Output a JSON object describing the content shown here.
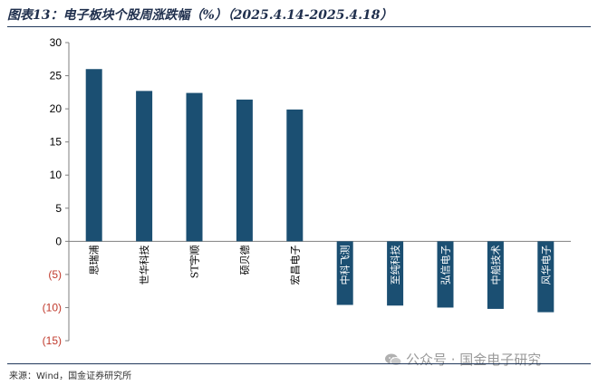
{
  "header": {
    "title": "图表13：电子板块个股周涨跌幅（%）（2025.4.14-2025.4.18）"
  },
  "footer": {
    "source": "来源：Wind，国金证券研究所",
    "watermark": "公众号 · 国金电子研究"
  },
  "colors": {
    "bar": "#1b4f72",
    "negative_tick": "#c0392b",
    "axis": "#7f7f7f"
  },
  "chart_data": {
    "type": "bar",
    "categories": [
      "思瑞浦",
      "世华科技",
      "ST宇顺",
      "硕贝德",
      "宏昌电子",
      "中科飞测",
      "至纯科技",
      "弘信电子",
      "中船技术",
      "风华电子"
    ],
    "values": [
      26.0,
      22.7,
      22.4,
      21.4,
      19.9,
      -9.6,
      -9.7,
      -10.0,
      -10.2,
      -10.7
    ],
    "ylim": [
      -15,
      30
    ],
    "yticks": [
      30,
      25,
      20,
      15,
      10,
      5,
      0,
      -5,
      -10,
      -15
    ],
    "ytick_labels": [
      "30",
      "25",
      "20",
      "15",
      "10",
      "5",
      "0",
      "(5)",
      "(10)",
      "(15)"
    ],
    "grid": false,
    "legend": "none"
  }
}
